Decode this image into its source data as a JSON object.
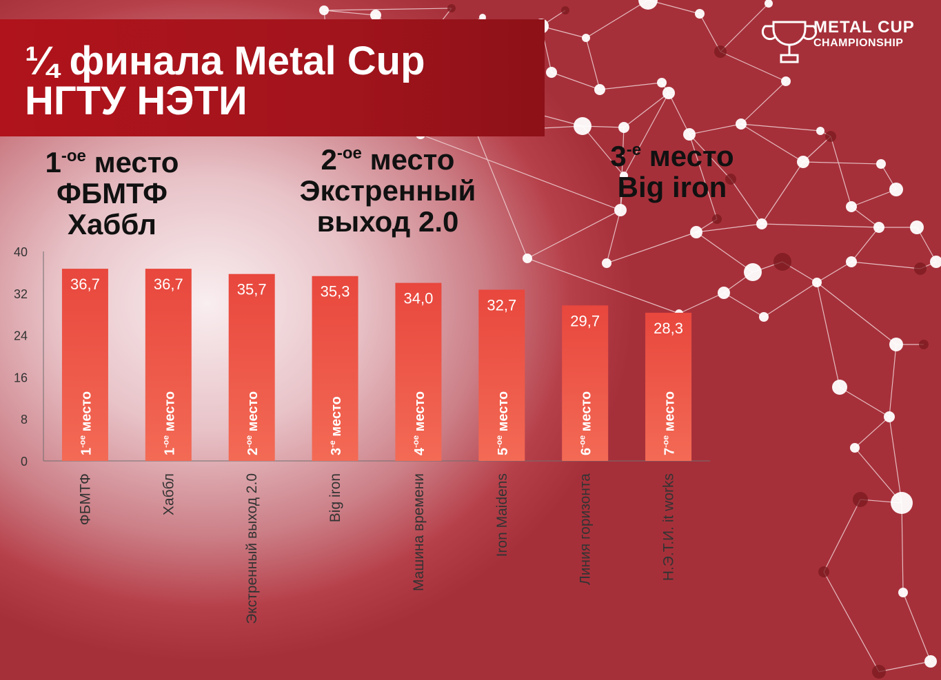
{
  "title": {
    "line1": "¼ финала Metal Cup",
    "line2": "НГТУ НЭТИ"
  },
  "logo": {
    "line1": "METAL CUP",
    "line2": "CHAMPIONSHIP",
    "icon": "trophy-icon"
  },
  "podium": [
    {
      "place_num": "1",
      "place_sup": "-ое",
      "place_word": "место",
      "teams": [
        "ФБМТФ",
        "Хаббл"
      ]
    },
    {
      "place_num": "2",
      "place_sup": "-ое",
      "place_word": "место",
      "teams": [
        "Экстренный",
        "выход 2.0"
      ]
    },
    {
      "place_num": "3",
      "place_sup": "-е",
      "place_word": "место",
      "teams": [
        "Big iron"
      ]
    }
  ],
  "colors": {
    "banner": "#a3141c",
    "bar_top": "#e8473d",
    "bar_bottom": "#f36a55",
    "network_node": "#ffffff",
    "network_dark_node": "#7a1a1f"
  },
  "chart_data": {
    "type": "bar",
    "categories": [
      "ФБМТФ",
      "Хаббл",
      "Экстренный выход 2.0",
      "Big iron",
      "Машина времени",
      "Iron Maidens",
      "Линия горизонта",
      "Н.Э.Т.И. it works"
    ],
    "values": [
      36.7,
      36.7,
      35.7,
      35.3,
      34.0,
      32.7,
      29.7,
      28.3
    ],
    "value_labels": [
      "36,7",
      "36,7",
      "35,7",
      "35,3",
      "34,0",
      "32,7",
      "29,7",
      "28,3"
    ],
    "place_labels": [
      {
        "num": "1",
        "sup": "-ое",
        "word": " место"
      },
      {
        "num": "1",
        "sup": "-ое",
        "word": " место"
      },
      {
        "num": "2",
        "sup": "-ое",
        "word": " место"
      },
      {
        "num": "3",
        "sup": "-е",
        "word": " место"
      },
      {
        "num": "4",
        "sup": "-ое",
        "word": " место"
      },
      {
        "num": "5",
        "sup": "-ое",
        "word": " место"
      },
      {
        "num": "6",
        "sup": "-ое",
        "word": " место"
      },
      {
        "num": "7",
        "sup": "-ое",
        "word": " место"
      }
    ],
    "yticks": [
      "0",
      "8",
      "16",
      "24",
      "32",
      "40"
    ],
    "ylim": [
      0,
      40
    ],
    "grid": false,
    "legend": "none"
  }
}
